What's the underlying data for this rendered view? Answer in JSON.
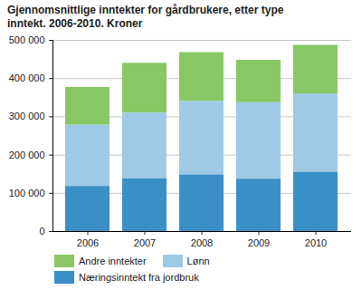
{
  "chart_data": {
    "type": "bar",
    "title": "Gjennomsnittlige inntekter for gårdbrukere, etter type inntekt. 2006-2010. Kroner",
    "categories": [
      "2006",
      "2007",
      "2008",
      "2009",
      "2010"
    ],
    "series": [
      {
        "name": "Andre inntekter",
        "color": "#88c764",
        "values": [
          99000,
          130000,
          128000,
          111000,
          127000
        ]
      },
      {
        "name": "Lønn",
        "color": "#9ecae6",
        "values": [
          160000,
          172000,
          192000,
          200000,
          205000
        ]
      },
      {
        "name": "Næringsinntekt fra jordbruk",
        "color": "#3a8fc6",
        "values": [
          118000,
          138000,
          148000,
          137000,
          155000
        ]
      }
    ],
    "stacked": true,
    "ylim": [
      0,
      500000
    ],
    "yticks": [
      0,
      {
        "value": 100000,
        "label": "100 000"
      },
      {
        "value": 200000,
        "label": "200 000"
      },
      {
        "value": 300000,
        "label": "300 000"
      },
      {
        "value": 400000,
        "label": "400 000"
      },
      {
        "value": 500000,
        "label": "500 000"
      }
    ],
    "grid": true,
    "legend": "bottom"
  }
}
